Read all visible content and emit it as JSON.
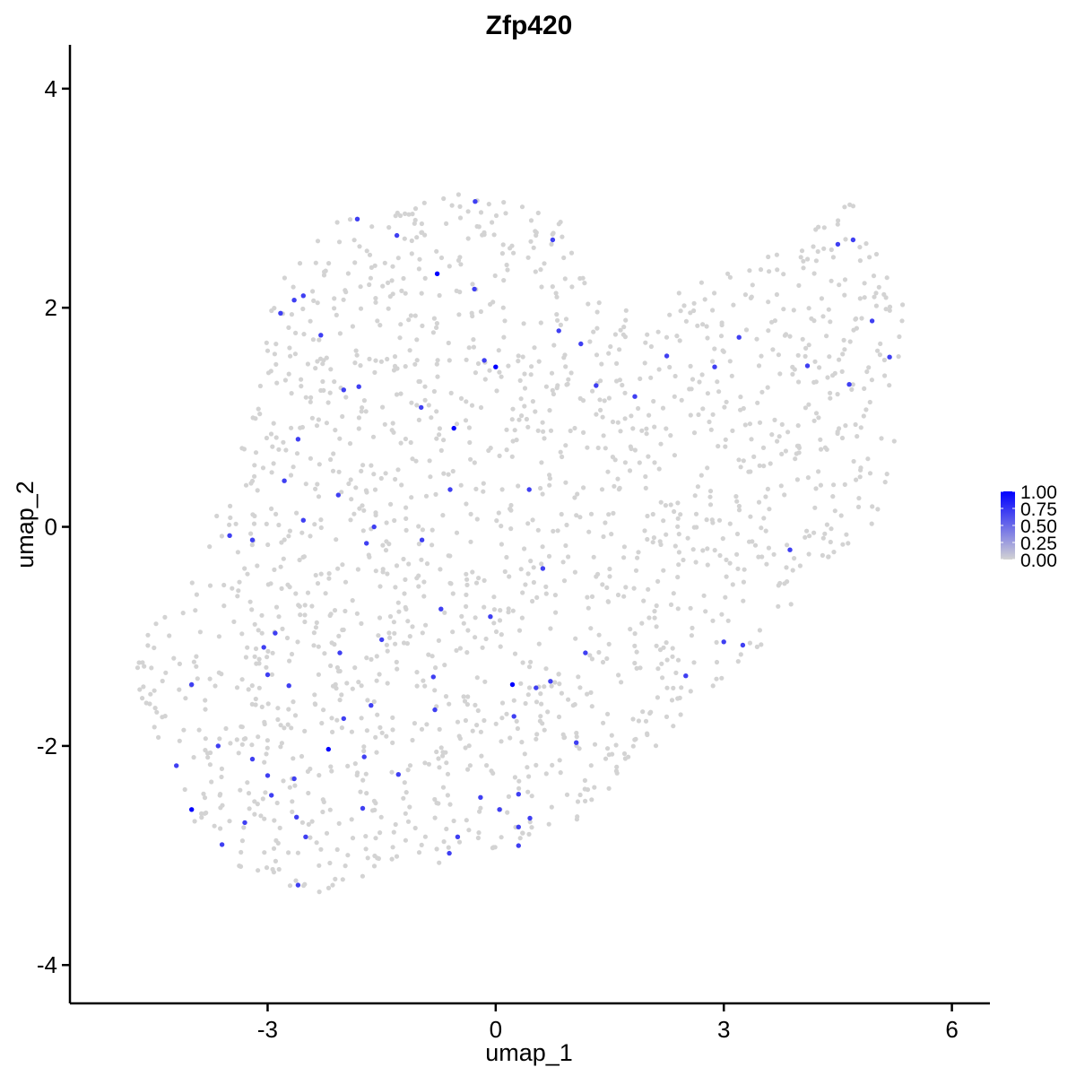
{
  "chart_data": {
    "type": "scatter",
    "title": "Zfp420",
    "xlabel": "umap_1",
    "ylabel": "umap_2",
    "xlim": [
      -5.6,
      6.5
    ],
    "ylim": [
      -4.35,
      4.4
    ],
    "xticks": [
      -3,
      0,
      3,
      6
    ],
    "xtick_labels": [
      "-3",
      "0",
      "3",
      "6"
    ],
    "yticks": [
      -4,
      -2,
      0,
      2,
      4
    ],
    "ytick_labels": [
      "-4",
      "-2",
      "0",
      "2",
      "4"
    ],
    "grid": false,
    "color_scale": {
      "low_color": "#d3d3d3",
      "high_color": "#0000ff",
      "min": 0,
      "max": 1,
      "breaks": [
        1.0,
        0.75,
        0.5,
        0.25,
        0.0
      ],
      "break_labels": [
        "1.00",
        "0.75",
        "0.50",
        "0.25",
        "0.00"
      ],
      "legend_position": "right"
    },
    "expressed_points": [
      {
        "x": -0.77,
        "y": 2.31,
        "v": 1.0
      },
      {
        "x": 0.0,
        "y": 1.46,
        "v": 1.0
      },
      {
        "x": -0.55,
        "y": 0.9,
        "v": 1.0
      },
      {
        "x": 0.22,
        "y": -1.44,
        "v": 1.0
      },
      {
        "x": -2.2,
        "y": -2.03,
        "v": 1.0
      },
      {
        "x": -4.0,
        "y": -2.58,
        "v": 1.0
      },
      {
        "x": -0.27,
        "y": 2.97,
        "v": 0.7
      },
      {
        "x": 0.75,
        "y": 2.62,
        "v": 0.7
      },
      {
        "x": -1.3,
        "y": 2.66,
        "v": 0.7
      },
      {
        "x": -1.82,
        "y": 2.81,
        "v": 0.7
      },
      {
        "x": -2.83,
        "y": 1.95,
        "v": 0.7
      },
      {
        "x": -2.65,
        "y": 2.07,
        "v": 0.7
      },
      {
        "x": -2.53,
        "y": 2.11,
        "v": 0.7
      },
      {
        "x": -1.8,
        "y": 1.28,
        "v": 0.7
      },
      {
        "x": -2.3,
        "y": 1.75,
        "v": 0.7
      },
      {
        "x": -2.0,
        "y": 1.25,
        "v": 0.7
      },
      {
        "x": -0.28,
        "y": 2.17,
        "v": 0.7
      },
      {
        "x": -0.15,
        "y": 1.52,
        "v": 0.7
      },
      {
        "x": 0.83,
        "y": 1.79,
        "v": 0.7
      },
      {
        "x": 1.12,
        "y": 1.67,
        "v": 0.7
      },
      {
        "x": 1.32,
        "y": 1.29,
        "v": 0.7
      },
      {
        "x": 1.83,
        "y": 1.19,
        "v": 0.7
      },
      {
        "x": 2.25,
        "y": 1.56,
        "v": 0.7
      },
      {
        "x": 2.88,
        "y": 1.46,
        "v": 0.7
      },
      {
        "x": 3.2,
        "y": 1.73,
        "v": 0.7
      },
      {
        "x": 4.1,
        "y": 1.47,
        "v": 0.7
      },
      {
        "x": 4.5,
        "y": 2.58,
        "v": 0.7
      },
      {
        "x": 4.7,
        "y": 2.62,
        "v": 0.7
      },
      {
        "x": 4.95,
        "y": 1.88,
        "v": 0.7
      },
      {
        "x": 5.18,
        "y": 1.55,
        "v": 0.7
      },
      {
        "x": 4.65,
        "y": 1.3,
        "v": 0.7
      },
      {
        "x": -0.98,
        "y": 1.09,
        "v": 0.7
      },
      {
        "x": -0.6,
        "y": 0.34,
        "v": 0.7
      },
      {
        "x": 0.44,
        "y": 0.34,
        "v": 0.7
      },
      {
        "x": -2.6,
        "y": 0.8,
        "v": 0.7
      },
      {
        "x": -2.78,
        "y": 0.42,
        "v": 0.7
      },
      {
        "x": -2.07,
        "y": 0.29,
        "v": 0.7
      },
      {
        "x": -1.6,
        "y": 0.0,
        "v": 0.7
      },
      {
        "x": -3.5,
        "y": -0.08,
        "v": 0.7
      },
      {
        "x": -3.2,
        "y": -0.12,
        "v": 0.7
      },
      {
        "x": -2.53,
        "y": 0.06,
        "v": 0.7
      },
      {
        "x": -1.7,
        "y": -0.15,
        "v": 0.7
      },
      {
        "x": -0.97,
        "y": -0.12,
        "v": 0.7
      },
      {
        "x": 0.62,
        "y": -0.38,
        "v": 0.7
      },
      {
        "x": -0.72,
        "y": -0.75,
        "v": 0.7
      },
      {
        "x": -0.07,
        "y": -0.82,
        "v": 0.7
      },
      {
        "x": -1.5,
        "y": -1.03,
        "v": 0.7
      },
      {
        "x": -2.05,
        "y": -1.15,
        "v": 0.7
      },
      {
        "x": -3.05,
        "y": -1.1,
        "v": 0.7
      },
      {
        "x": -2.9,
        "y": -0.97,
        "v": 0.7
      },
      {
        "x": -3.0,
        "y": -1.35,
        "v": 0.7
      },
      {
        "x": -2.72,
        "y": -1.45,
        "v": 0.7
      },
      {
        "x": -4.0,
        "y": -1.44,
        "v": 0.7
      },
      {
        "x": -0.82,
        "y": -1.37,
        "v": 0.7
      },
      {
        "x": 0.72,
        "y": -1.41,
        "v": 0.7
      },
      {
        "x": 0.53,
        "y": -1.47,
        "v": 0.7
      },
      {
        "x": 1.18,
        "y": -1.15,
        "v": 0.7
      },
      {
        "x": 2.5,
        "y": -1.36,
        "v": 0.7
      },
      {
        "x": 3.0,
        "y": -1.05,
        "v": 0.7
      },
      {
        "x": 3.87,
        "y": -0.21,
        "v": 0.7
      },
      {
        "x": -1.64,
        "y": -1.63,
        "v": 0.7
      },
      {
        "x": -0.8,
        "y": -1.67,
        "v": 0.7
      },
      {
        "x": -2.0,
        "y": -1.75,
        "v": 0.7
      },
      {
        "x": -1.73,
        "y": -2.1,
        "v": 0.7
      },
      {
        "x": -1.28,
        "y": -2.26,
        "v": 0.7
      },
      {
        "x": -2.65,
        "y": -2.3,
        "v": 0.7
      },
      {
        "x": -2.95,
        "y": -2.45,
        "v": 0.7
      },
      {
        "x": -3.65,
        "y": -2.0,
        "v": 0.7
      },
      {
        "x": -4.2,
        "y": -2.18,
        "v": 0.7
      },
      {
        "x": -3.2,
        "y": -2.12,
        "v": 0.7
      },
      {
        "x": -3.0,
        "y": -2.27,
        "v": 0.7
      },
      {
        "x": -1.75,
        "y": -2.57,
        "v": 0.7
      },
      {
        "x": -2.62,
        "y": -2.65,
        "v": 0.7
      },
      {
        "x": -2.5,
        "y": -2.83,
        "v": 0.7
      },
      {
        "x": -3.3,
        "y": -2.7,
        "v": 0.7
      },
      {
        "x": -3.6,
        "y": -2.9,
        "v": 0.7
      },
      {
        "x": -2.6,
        "y": -3.27,
        "v": 0.7
      },
      {
        "x": -0.5,
        "y": -2.83,
        "v": 0.7
      },
      {
        "x": -0.2,
        "y": -2.47,
        "v": 0.7
      },
      {
        "x": 0.05,
        "y": -2.58,
        "v": 0.7
      },
      {
        "x": 0.3,
        "y": -2.44,
        "v": 0.7
      },
      {
        "x": 0.3,
        "y": -2.74,
        "v": 0.7
      },
      {
        "x": 0.3,
        "y": -2.91,
        "v": 0.7
      },
      {
        "x": -0.61,
        "y": -2.98,
        "v": 0.7
      },
      {
        "x": 0.45,
        "y": -2.66,
        "v": 0.7
      },
      {
        "x": 1.06,
        "y": -1.97,
        "v": 0.7
      },
      {
        "x": 0.24,
        "y": -1.73,
        "v": 0.7
      },
      {
        "x": 3.25,
        "y": -1.08,
        "v": 0.7
      }
    ]
  }
}
